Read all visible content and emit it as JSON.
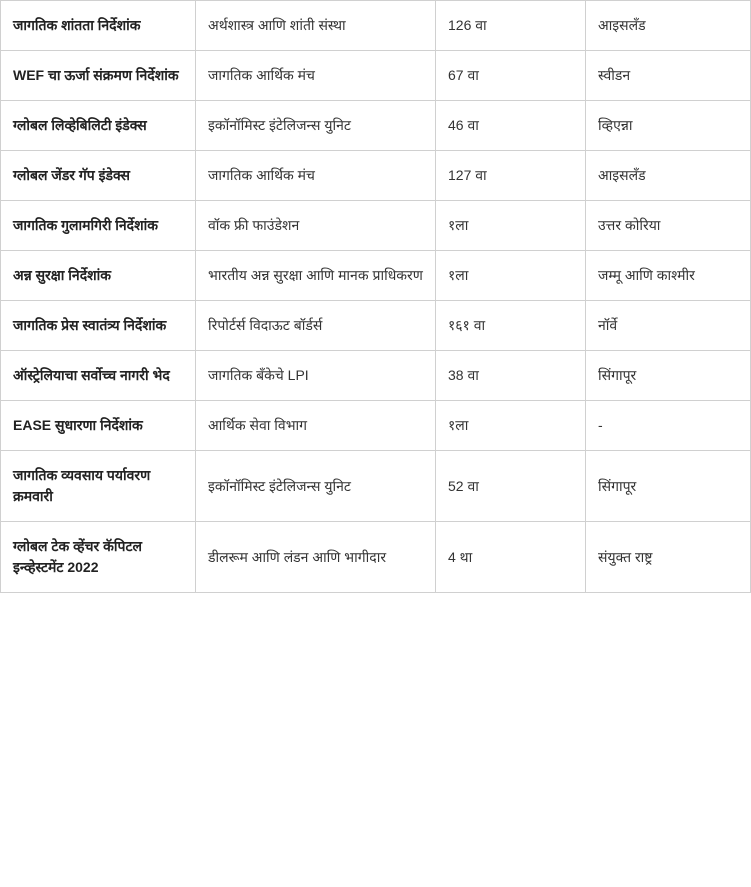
{
  "table": {
    "type": "table",
    "border_color": "#d0d0d0",
    "background_color": "#ffffff",
    "text_color": "#333333",
    "header_text_color": "#222222",
    "font_size": 14,
    "cell_padding": "14px 12px",
    "columns": [
      {
        "width": "26%",
        "bold": true
      },
      {
        "width": "32%",
        "bold": false
      },
      {
        "width": "20%",
        "bold": false
      },
      {
        "width": "22%",
        "bold": false
      }
    ],
    "rows": [
      {
        "c0": "जागतिक शांतता निर्देशांक",
        "c1": "अर्थशास्त्र आणि शांती संस्था",
        "c2": "126 वा",
        "c3": "आइसलँड"
      },
      {
        "c0": "WEF चा ऊर्जा संक्रमण निर्देशांक",
        "c1": "जागतिक आर्थिक मंच",
        "c2": "67 वा",
        "c3": "स्वीडन"
      },
      {
        "c0": "ग्लोबल लिव्हेबिलिटी इंडेक्स",
        "c1": "इकॉनॉमिस्ट इंटेलिजन्स युनिट",
        "c2": "46 वा",
        "c3": "व्हिएन्ना"
      },
      {
        "c0": "ग्लोबल जेंडर गॅप इंडेक्स",
        "c1": "जागतिक आर्थिक मंच",
        "c2": "127 वा",
        "c3": "आइसलँड"
      },
      {
        "c0": "जागतिक गुलामगिरी निर्देशांक",
        "c1": "वॉक फ्री फाउंडेशन",
        "c2": "१ला",
        "c3": "उत्तर कोरिया"
      },
      {
        "c0": "अन्न सुरक्षा निर्देशांक",
        "c1": "भारतीय अन्न सुरक्षा आणि मानक प्राधिकरण",
        "c2": "१ला",
        "c3": "जम्मू आणि काश्मीर"
      },
      {
        "c0": "जागतिक प्रेस स्वातंत्र्य निर्देशांक",
        "c1": "रिपोर्टर्स विदाऊट बॉर्डर्स",
        "c2": "१६१ वा",
        "c3": "नॉर्वे"
      },
      {
        "c0": "ऑस्ट्रेलियाचा सर्वोच्च नागरी भेद",
        "c1": "जागतिक बँकेचे LPI",
        "c2": "38 वा",
        "c3": "सिंगापूर"
      },
      {
        "c0": "EASE सुधारणा निर्देशांक",
        "c1": "आर्थिक सेवा विभाग",
        "c2": "१ला",
        "c3": "-"
      },
      {
        "c0": "जागतिक व्यवसाय पर्यावरण क्रमवारी",
        "c1": "इकॉनॉमिस्ट इंटेलिजन्स युनिट",
        "c2": "52 वा",
        "c3": "सिंगापूर"
      },
      {
        "c0": "ग्लोबल टेक व्हेंचर कॅपिटल इन्व्हेस्टमेंट 2022",
        "c1": "डीलरूम आणि लंडन आणि भागीदार",
        "c2": "4 था",
        "c3": "संयुक्त राष्ट्र"
      }
    ]
  }
}
